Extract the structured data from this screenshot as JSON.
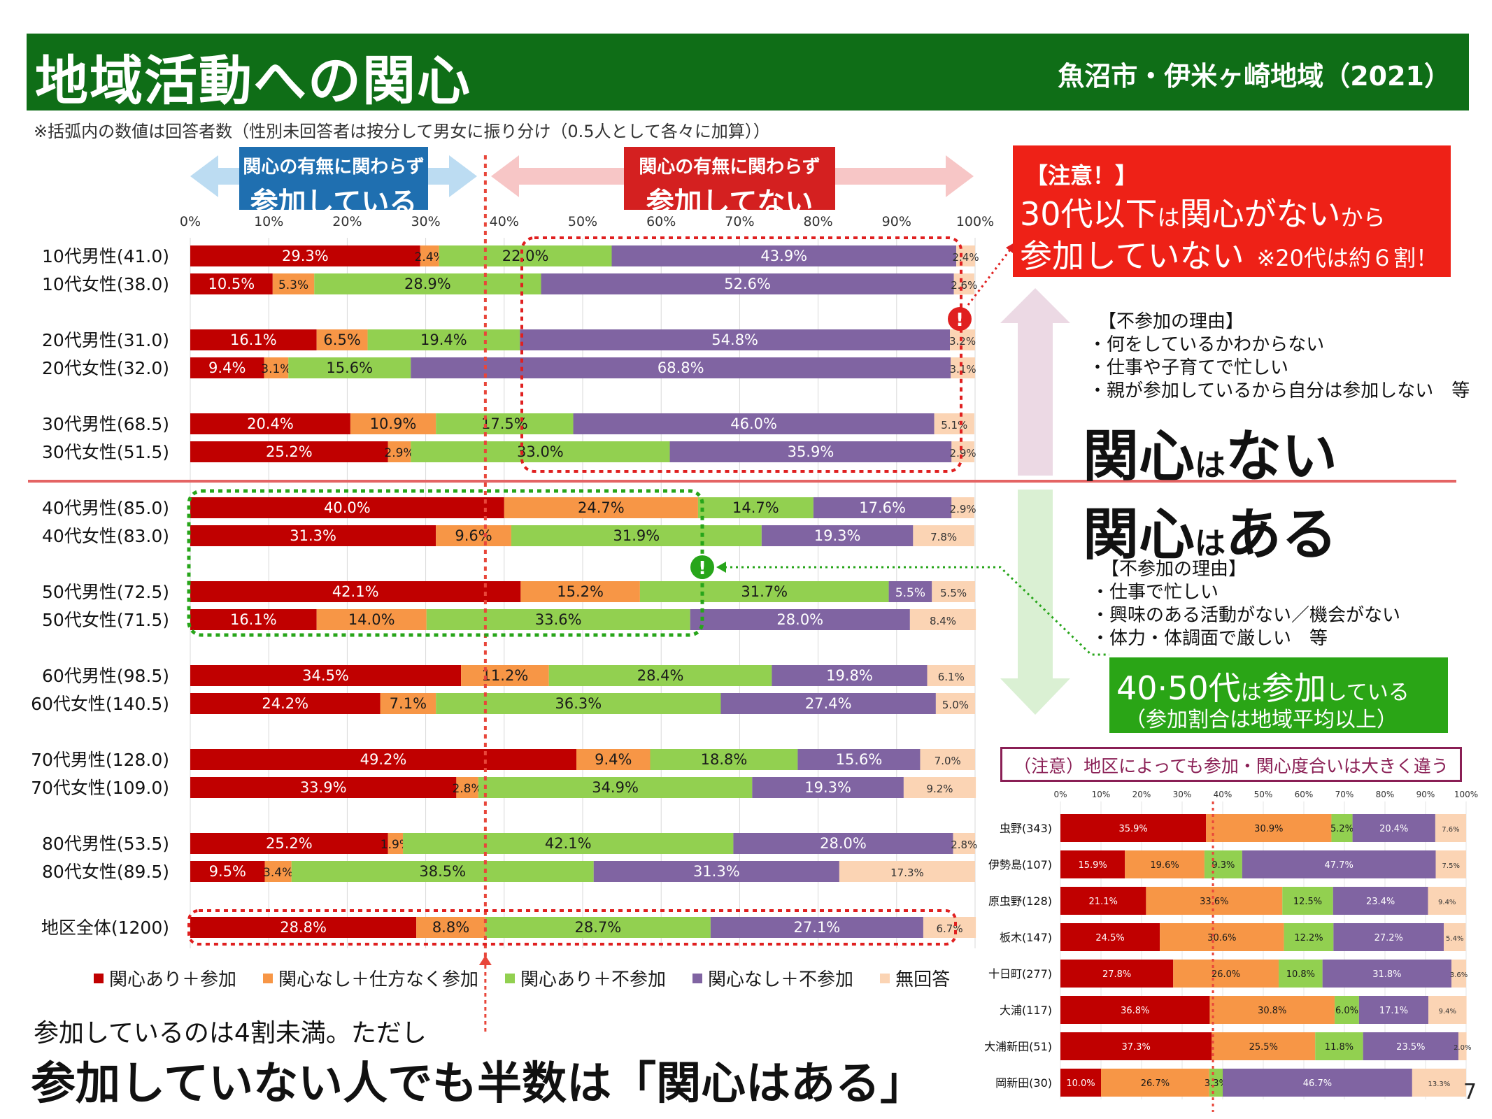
{
  "header": {
    "title": "地域活動への関心",
    "region": "魚沼市・伊米ヶ崎地域（2021）"
  },
  "note": "※括弧内の数値は回答者数（性別未回答者は按分して男女に振り分け（0.5人として各々に加算））",
  "arrow_labels": {
    "participating": {
      "small": "関心の有無に関わらず",
      "big": "参加している"
    },
    "not_participating": {
      "small": "関心の有無に関わらず",
      "big": "参加してない"
    }
  },
  "colors": {
    "c1": "#c00000",
    "c2": "#f79646",
    "c3": "#92d050",
    "c4": "#8064a2",
    "c5": "#fbd4b4"
  },
  "chart_data": [
    {
      "type": "bar",
      "orientation": "horizontal-stacked-100",
      "xlim": [
        0,
        100
      ],
      "ticks": [
        "0%",
        "10%",
        "20%",
        "30%",
        "40%",
        "50%",
        "60%",
        "70%",
        "80%",
        "90%",
        "100%"
      ],
      "legend": [
        "関心あり＋参加",
        "関心なし＋仕方なく参加",
        "関心あり＋不参加",
        "関心なし＋不参加",
        "無回答"
      ],
      "legend_position": "bottom",
      "rows": [
        {
          "label": "10代男性(41.0)",
          "values": [
            29.3,
            2.4,
            22.0,
            43.9,
            2.4
          ],
          "labels": [
            "29.3%",
            "2.4%",
            "22.0%",
            "43.9%",
            "2.4%"
          ]
        },
        {
          "label": "10代女性(38.0)",
          "values": [
            10.5,
            5.3,
            28.9,
            52.6,
            2.6
          ],
          "labels": [
            "10.5%",
            "5.3%",
            "28.9%",
            "52.6%",
            "2.6%"
          ]
        },
        {
          "label": "20代男性(31.0)",
          "values": [
            16.1,
            6.5,
            19.4,
            54.8,
            3.2
          ],
          "labels": [
            "16.1%",
            "6.5%",
            "19.4%",
            "54.8%",
            "3.2%"
          ]
        },
        {
          "label": "20代女性(32.0)",
          "values": [
            9.4,
            3.1,
            15.6,
            68.8,
            3.1
          ],
          "labels": [
            "9.4%",
            "3.1%",
            "15.6%",
            "68.8%",
            "3.1%"
          ]
        },
        {
          "label": "30代男性(68.5)",
          "values": [
            20.4,
            10.9,
            17.5,
            46.0,
            5.1
          ],
          "labels": [
            "20.4%",
            "10.9%",
            "17.5%",
            "46.0%",
            "5.1%"
          ]
        },
        {
          "label": "30代女性(51.5)",
          "values": [
            25.2,
            2.9,
            33.0,
            35.9,
            2.9
          ],
          "labels": [
            "25.2%",
            "2.9%",
            "33.0%",
            "35.9%",
            "2.9%"
          ]
        },
        {
          "label": "40代男性(85.0)",
          "values": [
            40.0,
            24.7,
            14.7,
            17.6,
            2.9
          ],
          "labels": [
            "40.0%",
            "24.7%",
            "14.7%",
            "17.6%",
            "2.9%"
          ]
        },
        {
          "label": "40代女性(83.0)",
          "values": [
            31.3,
            9.6,
            31.9,
            19.3,
            7.8
          ],
          "labels": [
            "31.3%",
            "9.6%",
            "31.9%",
            "19.3%",
            "7.8%"
          ]
        },
        {
          "label": "50代男性(72.5)",
          "values": [
            42.1,
            15.2,
            31.7,
            5.5,
            5.5
          ],
          "labels": [
            "42.1%",
            "15.2%",
            "31.7%",
            "5.5%",
            "5.5%"
          ]
        },
        {
          "label": "50代女性(71.5)",
          "values": [
            16.1,
            14.0,
            33.6,
            28.0,
            8.4
          ],
          "labels": [
            "16.1%",
            "14.0%",
            "33.6%",
            "28.0%",
            "8.4%"
          ]
        },
        {
          "label": "60代男性(98.5)",
          "values": [
            34.5,
            11.2,
            28.4,
            19.8,
            6.1
          ],
          "labels": [
            "34.5%",
            "11.2%",
            "28.4%",
            "19.8%",
            "6.1%"
          ]
        },
        {
          "label": "60代女性(140.5)",
          "values": [
            24.2,
            7.1,
            36.3,
            27.4,
            5.0
          ],
          "labels": [
            "24.2%",
            "7.1%",
            "36.3%",
            "27.4%",
            "5.0%"
          ]
        },
        {
          "label": "70代男性(128.0)",
          "values": [
            49.2,
            9.4,
            18.8,
            15.6,
            7.0
          ],
          "labels": [
            "49.2%",
            "9.4%",
            "18.8%",
            "15.6%",
            "7.0%"
          ]
        },
        {
          "label": "70代女性(109.0)",
          "values": [
            33.9,
            2.8,
            34.9,
            19.3,
            9.2
          ],
          "labels": [
            "33.9%",
            "2.8%",
            "34.9%",
            "19.3%",
            "9.2%"
          ]
        },
        {
          "label": "80代男性(53.5)",
          "values": [
            25.2,
            1.9,
            42.1,
            28.0,
            2.8
          ],
          "labels": [
            "25.2%",
            "1.9%",
            "42.1%",
            "28.0%",
            "2.8%"
          ]
        },
        {
          "label": "80代女性(89.5)",
          "values": [
            9.5,
            3.4,
            38.5,
            31.3,
            17.3
          ],
          "labels": [
            "9.5%",
            "3.4%",
            "38.5%",
            "31.3%",
            "17.3%"
          ]
        },
        {
          "label": "地区全体(1200)",
          "values": [
            28.8,
            8.8,
            28.7,
            27.1,
            6.7
          ],
          "labels": [
            "28.8%",
            "8.8%",
            "28.7%",
            "27.1%",
            "6.7%"
          ]
        }
      ],
      "reference_line": 37.6
    },
    {
      "type": "bar",
      "orientation": "horizontal-stacked-100",
      "xlim": [
        0,
        100
      ],
      "ticks": [
        "0%",
        "10%",
        "20%",
        "30%",
        "40%",
        "50%",
        "60%",
        "70%",
        "80%",
        "90%",
        "100%"
      ],
      "rows": [
        {
          "label": "虫野(343)",
          "values": [
            35.9,
            30.9,
            5.2,
            20.4,
            7.6
          ],
          "labels": [
            "35.9%",
            "30.9%",
            "5.2%",
            "20.4%",
            "7.6%"
          ]
        },
        {
          "label": "伊勢島(107)",
          "values": [
            15.9,
            19.6,
            9.3,
            47.7,
            7.5
          ],
          "labels": [
            "15.9%",
            "19.6%",
            "9.3%",
            "47.7%",
            "7.5%"
          ]
        },
        {
          "label": "原虫野(128)",
          "values": [
            21.1,
            33.6,
            12.5,
            23.4,
            9.4
          ],
          "labels": [
            "21.1%",
            "33.6%",
            "12.5%",
            "23.4%",
            "9.4%"
          ]
        },
        {
          "label": "板木(147)",
          "values": [
            24.5,
            30.6,
            12.2,
            27.2,
            5.4
          ],
          "labels": [
            "24.5%",
            "30.6%",
            "12.2%",
            "27.2%",
            "5.4%"
          ]
        },
        {
          "label": "十日町(277)",
          "values": [
            27.8,
            26.0,
            10.8,
            31.8,
            3.6
          ],
          "labels": [
            "27.8%",
            "26.0%",
            "10.8%",
            "31.8%",
            "3.6%"
          ]
        },
        {
          "label": "大浦(117)",
          "values": [
            36.8,
            30.8,
            6.0,
            17.1,
            9.4
          ],
          "labels": [
            "36.8%",
            "30.8%",
            "6.0%",
            "17.1%",
            "9.4%"
          ]
        },
        {
          "label": "大浦新田(51)",
          "values": [
            37.3,
            25.5,
            11.8,
            23.5,
            2.0
          ],
          "labels": [
            "37.3%",
            "25.5%",
            "11.8%",
            "23.5%",
            "2.0%"
          ]
        },
        {
          "label": "岡新田(30)",
          "values": [
            10.0,
            26.7,
            3.3,
            46.7,
            13.3
          ],
          "labels": [
            "10.0%",
            "26.7%",
            "3.3%",
            "46.7%",
            "13.3%"
          ]
        }
      ],
      "reference_line": 37.6
    }
  ],
  "warning": {
    "title": "【注意！】",
    "line1a": "30代以下",
    "line1b": "は",
    "line1c": "関心がない",
    "line1d": "から",
    "line2": "参加していない",
    "sub": "※20代は約６割！"
  },
  "reasons_no_interest": {
    "title": "【不参加の理由】",
    "items": [
      "・何をしているかわからない",
      "・仕事や子育てで忙しい",
      "・親が参加しているから自分は参加しない　等"
    ]
  },
  "big_no": {
    "a": "関心",
    "b": "は",
    "c": "ない"
  },
  "big_yes": {
    "a": "関心",
    "b": "は",
    "c": "ある"
  },
  "reasons_interest": {
    "title": "【不参加の理由】",
    "items": [
      "・仕事で忙しい",
      "・興味のある活動がない／機会がない",
      "・体力・体調面で厳しい　等"
    ]
  },
  "green_box": {
    "l1a": "40·50代",
    "l1b": "は",
    "l1c": "参加",
    "l1d": "している",
    "l2": "（参加割合は地域平均以上）"
  },
  "caution": "（注意）地区によっても参加・関心度合いは大きく違う",
  "footer": {
    "line1": "参加しているのは4割未満。ただし",
    "line2": "参加していない人でも半数は「関心はある」"
  },
  "page_number": "7"
}
